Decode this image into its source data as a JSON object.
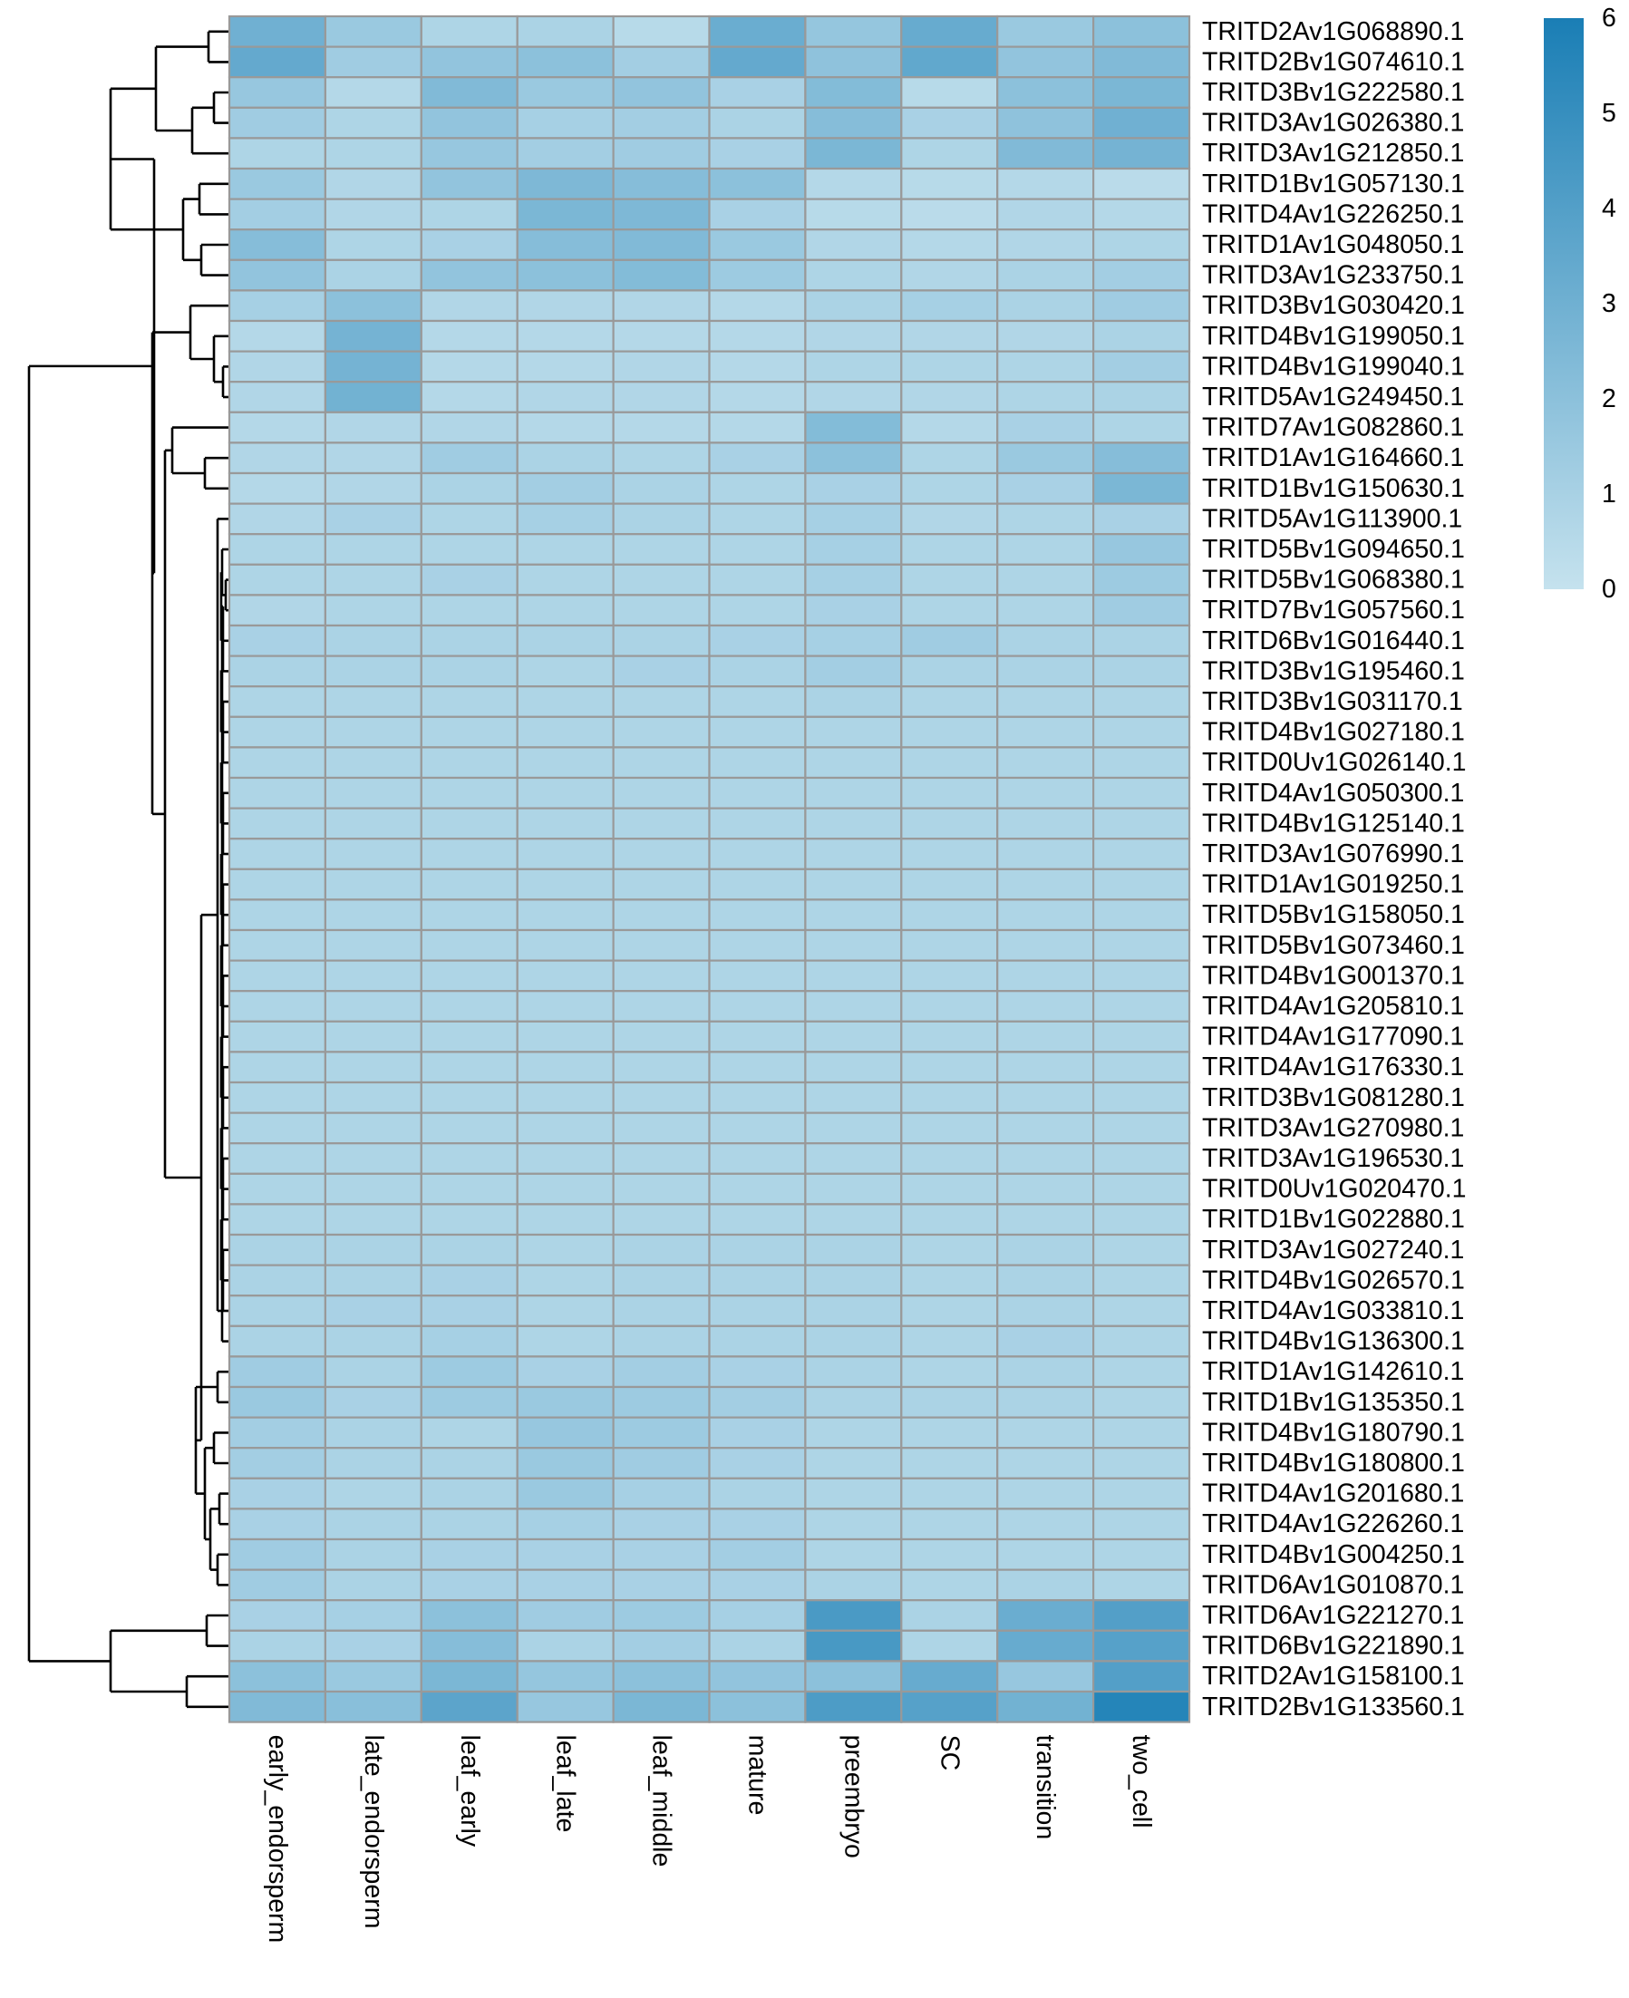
{
  "chart_data": {
    "type": "heatmap",
    "title": "",
    "xlabel": "",
    "ylabel": "",
    "columns": [
      "early_endorsperm",
      "late_endorsperm",
      "leaf_early",
      "leaf_late",
      "leaf_middle",
      "mature",
      "preembryo",
      "SC",
      "transition",
      "two_cell"
    ],
    "rows": [
      "TRITD2Av1G068890.1",
      "TRITD2Bv1G074610.1",
      "TRITD3Bv1G222580.1",
      "TRITD3Av1G026380.1",
      "TRITD3Av1G212850.1",
      "TRITD1Bv1G057130.1",
      "TRITD4Av1G226250.1",
      "TRITD1Av1G048050.1",
      "TRITD3Av1G233750.1",
      "TRITD3Bv1G030420.1",
      "TRITD4Bv1G199050.1",
      "TRITD4Bv1G199040.1",
      "TRITD5Av1G249450.1",
      "TRITD7Av1G082860.1",
      "TRITD1Av1G164660.1",
      "TRITD1Bv1G150630.1",
      "TRITD5Av1G113900.1",
      "TRITD5Bv1G094650.1",
      "TRITD5Bv1G068380.1",
      "TRITD7Bv1G057560.1",
      "TRITD6Bv1G016440.1",
      "TRITD3Bv1G195460.1",
      "TRITD3Bv1G031170.1",
      "TRITD4Bv1G027180.1",
      "TRITD0Uv1G026140.1",
      "TRITD4Av1G050300.1",
      "TRITD4Bv1G125140.1",
      "TRITD3Av1G076990.1",
      "TRITD1Av1G019250.1",
      "TRITD5Bv1G158050.1",
      "TRITD5Bv1G073460.1",
      "TRITD4Bv1G001370.1",
      "TRITD4Av1G205810.1",
      "TRITD4Av1G177090.1",
      "TRITD4Av1G176330.1",
      "TRITD3Bv1G081280.1",
      "TRITD3Av1G270980.1",
      "TRITD3Av1G196530.1",
      "TRITD0Uv1G020470.1",
      "TRITD1Bv1G022880.1",
      "TRITD3Av1G027240.1",
      "TRITD4Bv1G026570.1",
      "TRITD4Av1G033810.1",
      "TRITD4Bv1G136300.1",
      "TRITD1Av1G142610.1",
      "TRITD1Bv1G135350.1",
      "TRITD4Bv1G180790.1",
      "TRITD4Bv1G180800.1",
      "TRITD4Av1G201680.1",
      "TRITD4Av1G226260.1",
      "TRITD4Bv1G004250.1",
      "TRITD6Av1G010870.1",
      "TRITD6Av1G221270.1",
      "TRITD6Bv1G221890.1",
      "TRITD2Av1G158100.1",
      "TRITD2Bv1G133560.1"
    ],
    "values": [
      [
        3.0,
        1.5,
        0.8,
        0.9,
        0.5,
        3.2,
        1.7,
        3.3,
        1.5,
        2.0
      ],
      [
        3.4,
        1.3,
        1.8,
        2.0,
        1.2,
        3.4,
        1.9,
        3.5,
        1.8,
        2.4
      ],
      [
        1.6,
        0.6,
        2.4,
        1.5,
        1.8,
        1.0,
        2.3,
        0.5,
        2.0,
        2.6
      ],
      [
        1.3,
        0.8,
        1.8,
        1.1,
        1.2,
        0.9,
        2.2,
        1.0,
        1.9,
        3.0
      ],
      [
        0.8,
        0.8,
        1.6,
        1.2,
        1.3,
        1.0,
        2.6,
        0.8,
        2.4,
        2.8
      ],
      [
        1.5,
        0.7,
        1.8,
        2.5,
        2.2,
        2.0,
        0.6,
        0.5,
        0.6,
        0.4
      ],
      [
        1.2,
        0.7,
        0.8,
        2.6,
        2.5,
        1.0,
        0.5,
        0.4,
        0.7,
        0.6
      ],
      [
        2.2,
        0.8,
        1.0,
        2.2,
        2.4,
        1.5,
        0.7,
        0.6,
        0.7,
        0.8
      ],
      [
        1.8,
        0.9,
        1.8,
        2.0,
        2.3,
        1.4,
        0.8,
        0.7,
        0.9,
        1.2
      ],
      [
        1.1,
        2.0,
        0.7,
        0.7,
        0.7,
        0.6,
        0.9,
        1.1,
        0.9,
        1.3
      ],
      [
        0.6,
        2.8,
        0.6,
        0.6,
        0.6,
        0.6,
        0.7,
        0.7,
        0.7,
        0.9
      ],
      [
        0.7,
        2.8,
        0.6,
        0.6,
        0.7,
        0.6,
        0.8,
        0.8,
        0.8,
        1.2
      ],
      [
        0.7,
        2.9,
        0.6,
        0.7,
        0.7,
        0.6,
        0.7,
        0.7,
        0.8,
        0.9
      ],
      [
        0.6,
        0.7,
        0.7,
        0.6,
        0.6,
        0.6,
        2.3,
        0.6,
        1.0,
        0.8
      ],
      [
        0.7,
        0.7,
        1.3,
        0.9,
        0.8,
        1.0,
        2.0,
        0.8,
        1.5,
        2.2
      ],
      [
        0.6,
        0.7,
        0.9,
        1.2,
        0.9,
        0.8,
        1.0,
        0.8,
        1.0,
        2.6
      ],
      [
        0.7,
        1.0,
        0.8,
        1.1,
        0.9,
        0.8,
        1.1,
        0.7,
        0.8,
        1.0
      ],
      [
        0.8,
        0.8,
        0.8,
        0.8,
        0.8,
        0.8,
        1.1,
        0.8,
        0.8,
        1.6
      ],
      [
        0.8,
        0.8,
        1.0,
        0.8,
        0.8,
        0.8,
        1.1,
        0.8,
        0.8,
        1.4
      ],
      [
        0.7,
        0.8,
        0.8,
        0.8,
        0.8,
        0.8,
        1.0,
        0.8,
        0.8,
        1.3
      ],
      [
        1.0,
        0.9,
        0.9,
        0.9,
        0.9,
        1.0,
        1.1,
        1.3,
        0.9,
        0.9
      ],
      [
        0.9,
        0.9,
        0.9,
        0.8,
        1.0,
        0.9,
        1.2,
        0.9,
        0.9,
        0.9
      ],
      [
        0.8,
        0.8,
        0.8,
        0.8,
        0.8,
        0.8,
        0.9,
        0.8,
        0.8,
        0.8
      ],
      [
        0.8,
        0.8,
        0.8,
        0.8,
        0.8,
        0.8,
        0.8,
        0.8,
        0.8,
        0.8
      ],
      [
        0.8,
        0.8,
        0.8,
        0.8,
        0.8,
        0.8,
        0.8,
        0.8,
        0.8,
        0.8
      ],
      [
        0.8,
        0.8,
        0.8,
        0.8,
        0.8,
        0.8,
        0.8,
        0.8,
        0.8,
        0.8
      ],
      [
        0.8,
        0.8,
        0.8,
        0.8,
        0.8,
        0.8,
        0.8,
        0.8,
        0.8,
        0.8
      ],
      [
        0.8,
        0.8,
        0.8,
        0.8,
        0.8,
        0.8,
        0.8,
        0.8,
        0.8,
        0.8
      ],
      [
        0.8,
        0.8,
        0.8,
        0.8,
        0.8,
        0.8,
        0.8,
        0.8,
        0.8,
        0.8
      ],
      [
        0.8,
        0.8,
        0.8,
        0.8,
        0.8,
        0.8,
        0.8,
        0.8,
        0.8,
        0.8
      ],
      [
        0.8,
        0.8,
        0.8,
        0.8,
        0.8,
        0.8,
        0.8,
        0.8,
        0.8,
        0.8
      ],
      [
        0.8,
        0.8,
        0.8,
        0.8,
        0.8,
        0.8,
        0.8,
        0.8,
        0.8,
        0.8
      ],
      [
        0.8,
        0.8,
        0.8,
        0.8,
        0.8,
        0.8,
        0.8,
        0.8,
        0.8,
        0.8
      ],
      [
        0.8,
        0.8,
        0.8,
        0.8,
        0.8,
        0.8,
        0.8,
        0.8,
        0.8,
        0.8
      ],
      [
        0.8,
        0.8,
        0.8,
        0.8,
        0.8,
        0.8,
        0.8,
        0.8,
        0.8,
        0.8
      ],
      [
        0.8,
        0.8,
        0.8,
        0.8,
        0.8,
        0.8,
        0.8,
        0.8,
        0.8,
        0.8
      ],
      [
        0.8,
        0.8,
        0.8,
        0.8,
        0.8,
        0.8,
        0.8,
        0.8,
        0.8,
        0.8
      ],
      [
        0.8,
        0.8,
        0.8,
        0.8,
        0.8,
        0.8,
        0.8,
        0.8,
        0.8,
        0.8
      ],
      [
        0.8,
        0.8,
        0.8,
        0.8,
        0.8,
        0.8,
        0.8,
        0.8,
        0.8,
        0.8
      ],
      [
        0.8,
        0.8,
        0.8,
        0.8,
        0.8,
        0.8,
        0.8,
        0.8,
        0.8,
        0.8
      ],
      [
        0.9,
        0.9,
        0.9,
        0.8,
        0.9,
        0.9,
        0.9,
        0.8,
        0.9,
        0.8
      ],
      [
        0.9,
        0.9,
        1.0,
        0.8,
        0.9,
        0.9,
        0.9,
        0.8,
        0.9,
        0.8
      ],
      [
        0.9,
        1.0,
        1.0,
        0.8,
        0.9,
        0.9,
        0.9,
        0.8,
        0.9,
        0.8
      ],
      [
        0.9,
        0.9,
        1.1,
        0.8,
        0.9,
        0.9,
        0.9,
        0.8,
        1.0,
        0.8
      ],
      [
        1.3,
        0.9,
        1.4,
        1.0,
        1.2,
        1.0,
        0.9,
        0.8,
        0.9,
        0.8
      ],
      [
        1.5,
        1.0,
        1.4,
        1.5,
        1.4,
        1.2,
        0.9,
        0.9,
        0.9,
        0.8
      ],
      [
        1.2,
        0.9,
        0.8,
        1.6,
        1.4,
        1.0,
        0.8,
        0.8,
        0.8,
        0.8
      ],
      [
        1.2,
        0.9,
        0.9,
        1.5,
        1.3,
        1.0,
        0.8,
        0.8,
        0.8,
        0.8
      ],
      [
        1.0,
        0.8,
        0.9,
        1.5,
        1.1,
        0.9,
        0.8,
        0.8,
        0.8,
        0.8
      ],
      [
        1.0,
        0.9,
        0.9,
        1.1,
        1.0,
        1.0,
        0.8,
        0.8,
        0.8,
        0.8
      ],
      [
        1.3,
        0.9,
        1.0,
        1.0,
        1.0,
        1.2,
        0.8,
        0.8,
        0.8,
        0.8
      ],
      [
        1.3,
        0.9,
        1.0,
        1.0,
        1.0,
        1.0,
        0.9,
        0.8,
        0.9,
        0.8
      ],
      [
        1.0,
        1.1,
        2.0,
        1.3,
        1.4,
        1.1,
        4.3,
        0.9,
        3.2,
        4.0
      ],
      [
        0.9,
        1.0,
        2.2,
        0.9,
        1.2,
        0.9,
        4.4,
        0.8,
        3.3,
        3.9
      ],
      [
        2.0,
        1.5,
        2.6,
        1.7,
        2.0,
        1.8,
        2.0,
        3.3,
        1.6,
        4.0
      ],
      [
        2.4,
        2.1,
        3.7,
        1.6,
        2.6,
        2.0,
        4.2,
        3.9,
        2.9,
        5.6
      ]
    ],
    "colorbar": {
      "min": 0,
      "max": 6,
      "ticks": [
        0,
        1,
        2,
        3,
        4,
        5,
        6
      ]
    },
    "colors": {
      "low": "#c5e2ee",
      "high": "#1a7eb5",
      "cell_border": "#999999",
      "dendrogram": "#000000"
    },
    "row_dendrogram": true
  }
}
